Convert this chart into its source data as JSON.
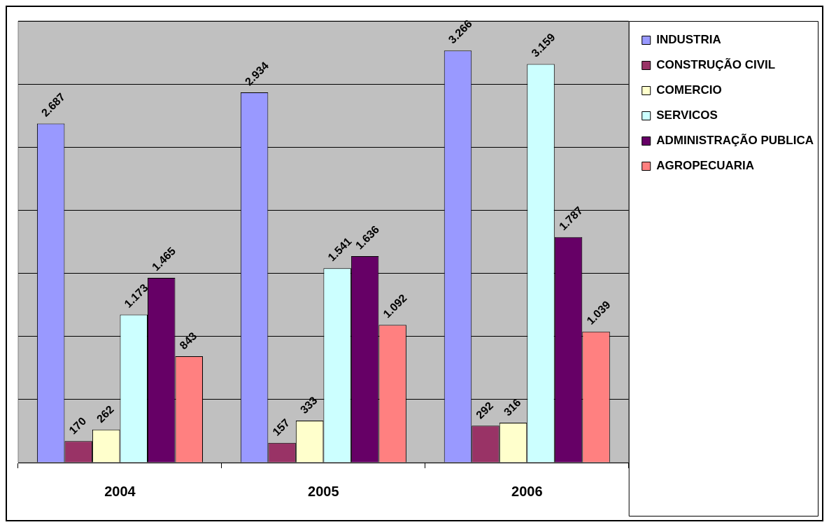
{
  "chart_data": {
    "type": "bar",
    "categories": [
      "2004",
      "2005",
      "2006"
    ],
    "series": [
      {
        "name": "INDUSTRIA",
        "color": "#9999ff",
        "values": [
          2687,
          2934,
          3266
        ],
        "value_labels": [
          "2.687",
          "2.934",
          "3.266"
        ]
      },
      {
        "name": "CONSTRUÇÃO CIVIL",
        "color": "#993366",
        "values": [
          170,
          157,
          292
        ],
        "value_labels": [
          "170",
          "157",
          "292"
        ]
      },
      {
        "name": "COMERCIO",
        "color": "#ffffcc",
        "values": [
          262,
          333,
          316
        ],
        "value_labels": [
          "262",
          "333",
          "316"
        ]
      },
      {
        "name": "SERVICOS",
        "color": "#ccffff",
        "values": [
          1173,
          1541,
          3159
        ],
        "value_labels": [
          "1.173",
          "1.541",
          "3.159"
        ]
      },
      {
        "name": "ADMINISTRAÇÃO PUBLICA",
        "color": "#660066",
        "values": [
          1465,
          1636,
          1787
        ],
        "value_labels": [
          "1.465",
          "1.636",
          "1.787"
        ]
      },
      {
        "name": "AGROPECUARIA",
        "color": "#ff8080",
        "values": [
          843,
          1092,
          1039
        ],
        "value_labels": [
          "843",
          "1.092",
          "1.039"
        ]
      }
    ],
    "ylim": [
      0,
      3500
    ],
    "yticks": [
      {
        "value": 0,
        "label": null
      },
      {
        "value": 500,
        "label": null
      },
      {
        "value": 1000,
        "label": null
      },
      {
        "value": 1500,
        "label": null
      },
      {
        "value": 2000,
        "label": null
      },
      {
        "value": 2500,
        "label": null
      },
      {
        "value": 3000,
        "label": null
      },
      {
        "value": 3500,
        "label": null
      }
    ],
    "grid": "y",
    "legend": "right",
    "tick_labels": "x"
  }
}
